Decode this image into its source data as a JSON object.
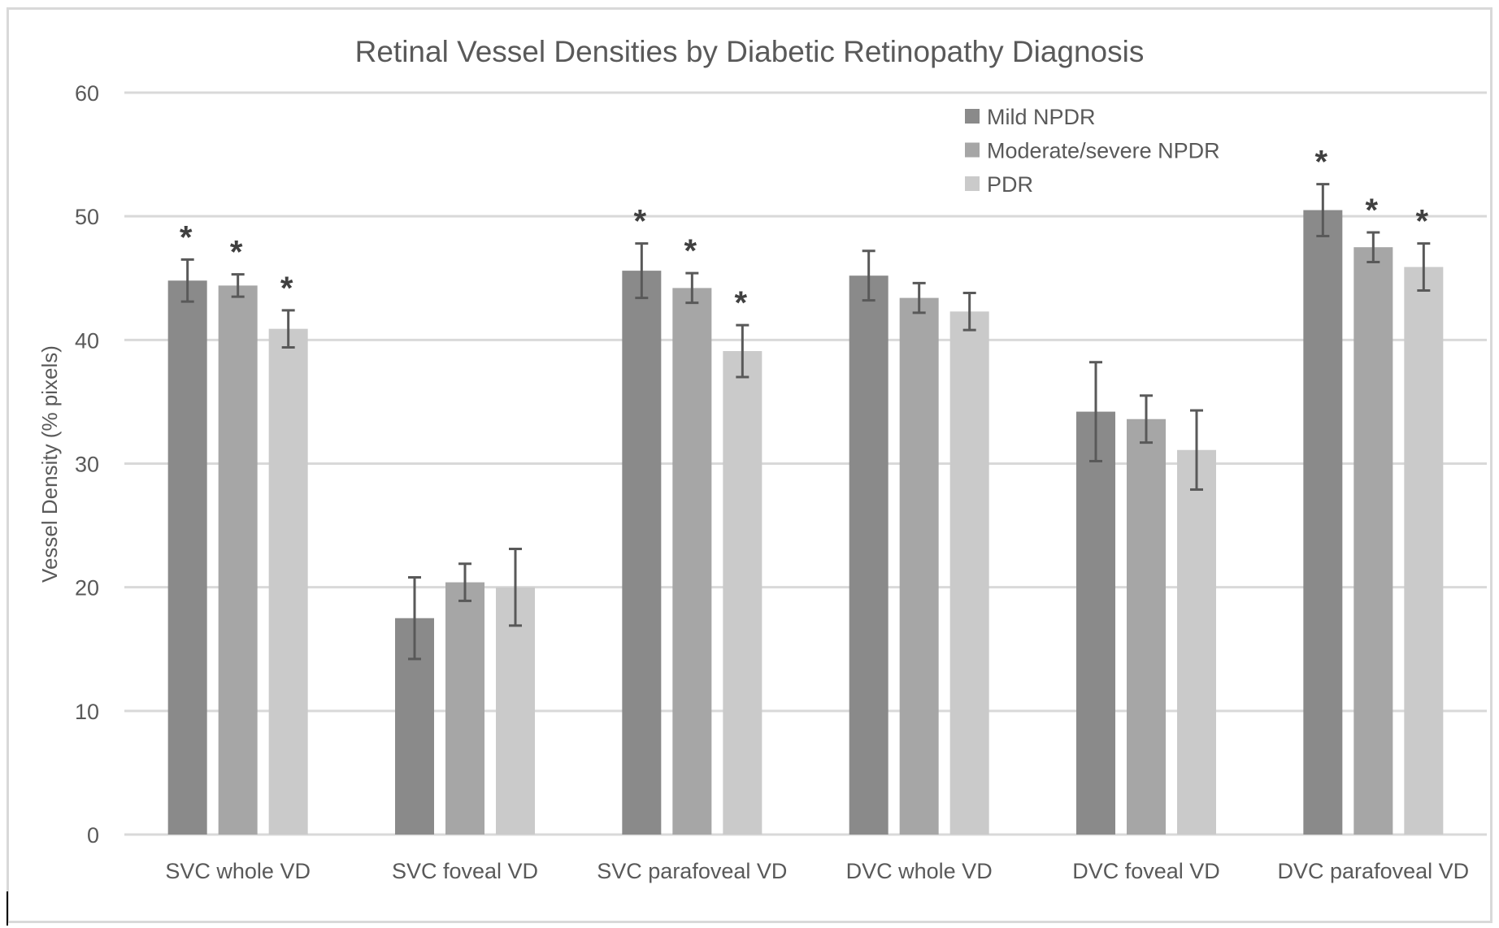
{
  "chart_data": {
    "type": "bar",
    "title": "Retinal Vessel Densities by Diabetic Retinopathy Diagnosis",
    "xlabel": "",
    "ylabel": "Vessel Density (% pixels)",
    "ylim": [
      0,
      60
    ],
    "yticks": [
      0,
      10,
      20,
      30,
      40,
      50,
      60
    ],
    "grid": true,
    "legend_position": "top-right",
    "categories": [
      "SVC whole VD",
      "SVC foveal VD",
      "SVC parafoveal VD",
      "DVC whole VD",
      "DVC foveal VD",
      "DVC parafoveal VD"
    ],
    "series": [
      {
        "name": "Mild NPDR",
        "color": "#8a8a8a",
        "values": [
          44.8,
          17.5,
          45.6,
          45.2,
          34.2,
          50.5
        ],
        "error": [
          1.7,
          3.3,
          2.2,
          2.0,
          4.0,
          2.1
        ],
        "significant": [
          true,
          false,
          true,
          false,
          false,
          true
        ]
      },
      {
        "name": "Moderate/severe NPDR",
        "color": "#a6a6a6",
        "values": [
          44.4,
          20.4,
          44.2,
          43.4,
          33.6,
          47.5
        ],
        "error": [
          0.9,
          1.5,
          1.2,
          1.2,
          1.9,
          1.2
        ],
        "significant": [
          true,
          false,
          true,
          false,
          false,
          true
        ]
      },
      {
        "name": "PDR",
        "color": "#cacaca",
        "values": [
          40.9,
          20.0,
          39.1,
          42.3,
          31.1,
          45.9
        ],
        "error": [
          1.5,
          3.1,
          2.1,
          1.5,
          3.2,
          1.9
        ],
        "significant": [
          true,
          false,
          true,
          false,
          false,
          true
        ]
      }
    ],
    "annotations": {
      "significance_marker": "*"
    }
  },
  "style": {
    "text_color": "#595959",
    "grid_color": "#d9d9d9",
    "error_color": "#595959",
    "star_color": "#404040"
  }
}
